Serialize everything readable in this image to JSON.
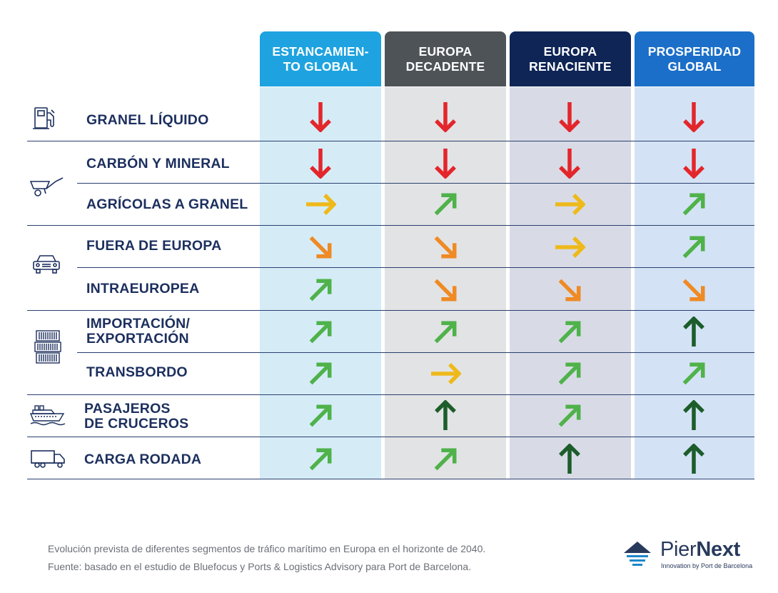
{
  "colors": {
    "down_red": "#e3262b",
    "right_yellow": "#eeb91a",
    "diag_down_orange": "#ef8a24",
    "diag_up_green": "#4fb24a",
    "up_darkgreen": "#1c5d2b"
  },
  "columns": [
    {
      "label": "ESTANCAMIEN-\nTO GLOBAL",
      "header_color": "#1ea3e0",
      "bg_color": "#d5ecf7"
    },
    {
      "label": "EUROPA\nDECADENTE",
      "header_color": "#4e5358",
      "bg_color": "#e2e3e5"
    },
    {
      "label": "EUROPA\nRENACIENTE",
      "header_color": "#0e2556",
      "bg_color": "#d8dbe6"
    },
    {
      "label": "PROSPERIDAD\nGLOBAL",
      "header_color": "#1b6fc8",
      "bg_color": "#d3e3f5"
    }
  ],
  "rows": [
    {
      "label": "GRANEL LÍQUIDO",
      "icon": "fuel-pump-icon",
      "trends": [
        "down",
        "down",
        "down",
        "down"
      ]
    },
    {
      "label": "CARBÓN Y MINERAL",
      "icon": "wheelbarrow-icon",
      "trends": [
        "down",
        "down",
        "down",
        "down"
      ]
    },
    {
      "label": "AGRÍCOLAS A GRANEL",
      "icon": "wheelbarrow-icon",
      "trends": [
        "right",
        "up-right",
        "right",
        "up-right"
      ]
    },
    {
      "label": "FUERA DE EUROPA",
      "icon": "car-icon",
      "trends": [
        "down-right",
        "down-right",
        "right",
        "up-right"
      ]
    },
    {
      "label": "INTRAEUROPEA",
      "icon": "car-icon",
      "trends": [
        "up-right",
        "down-right",
        "down-right",
        "down-right"
      ]
    },
    {
      "label": "IMPORTACIÓN/\nEXPORTACIÓN",
      "icon": "containers-icon",
      "trends": [
        "up-right",
        "up-right",
        "up-right",
        "up"
      ]
    },
    {
      "label": "TRANSBORDO",
      "icon": "containers-icon",
      "trends": [
        "up-right",
        "right",
        "up-right",
        "up-right"
      ]
    },
    {
      "label": "PASAJEROS\nDE CRUCEROS",
      "icon": "cruise-ship-icon",
      "trends": [
        "up-right",
        "up",
        "up-right",
        "up"
      ]
    },
    {
      "label": "CARGA RODADA",
      "icon": "truck-icon",
      "trends": [
        "up-right",
        "up-right",
        "up",
        "up"
      ]
    }
  ],
  "footer": {
    "caption": "Evolución prevista de diferentes segmentos de tráfico marítimo en Europa en el horizonte de 2040.",
    "source": "Fuente: basado en el estudio de Bluefocus y Ports & Logistics Advisory para Port de Barcelona."
  },
  "logo": {
    "name_light": "Pier",
    "name_bold": "Next",
    "tagline": "Innovation by Port de Barcelona"
  }
}
